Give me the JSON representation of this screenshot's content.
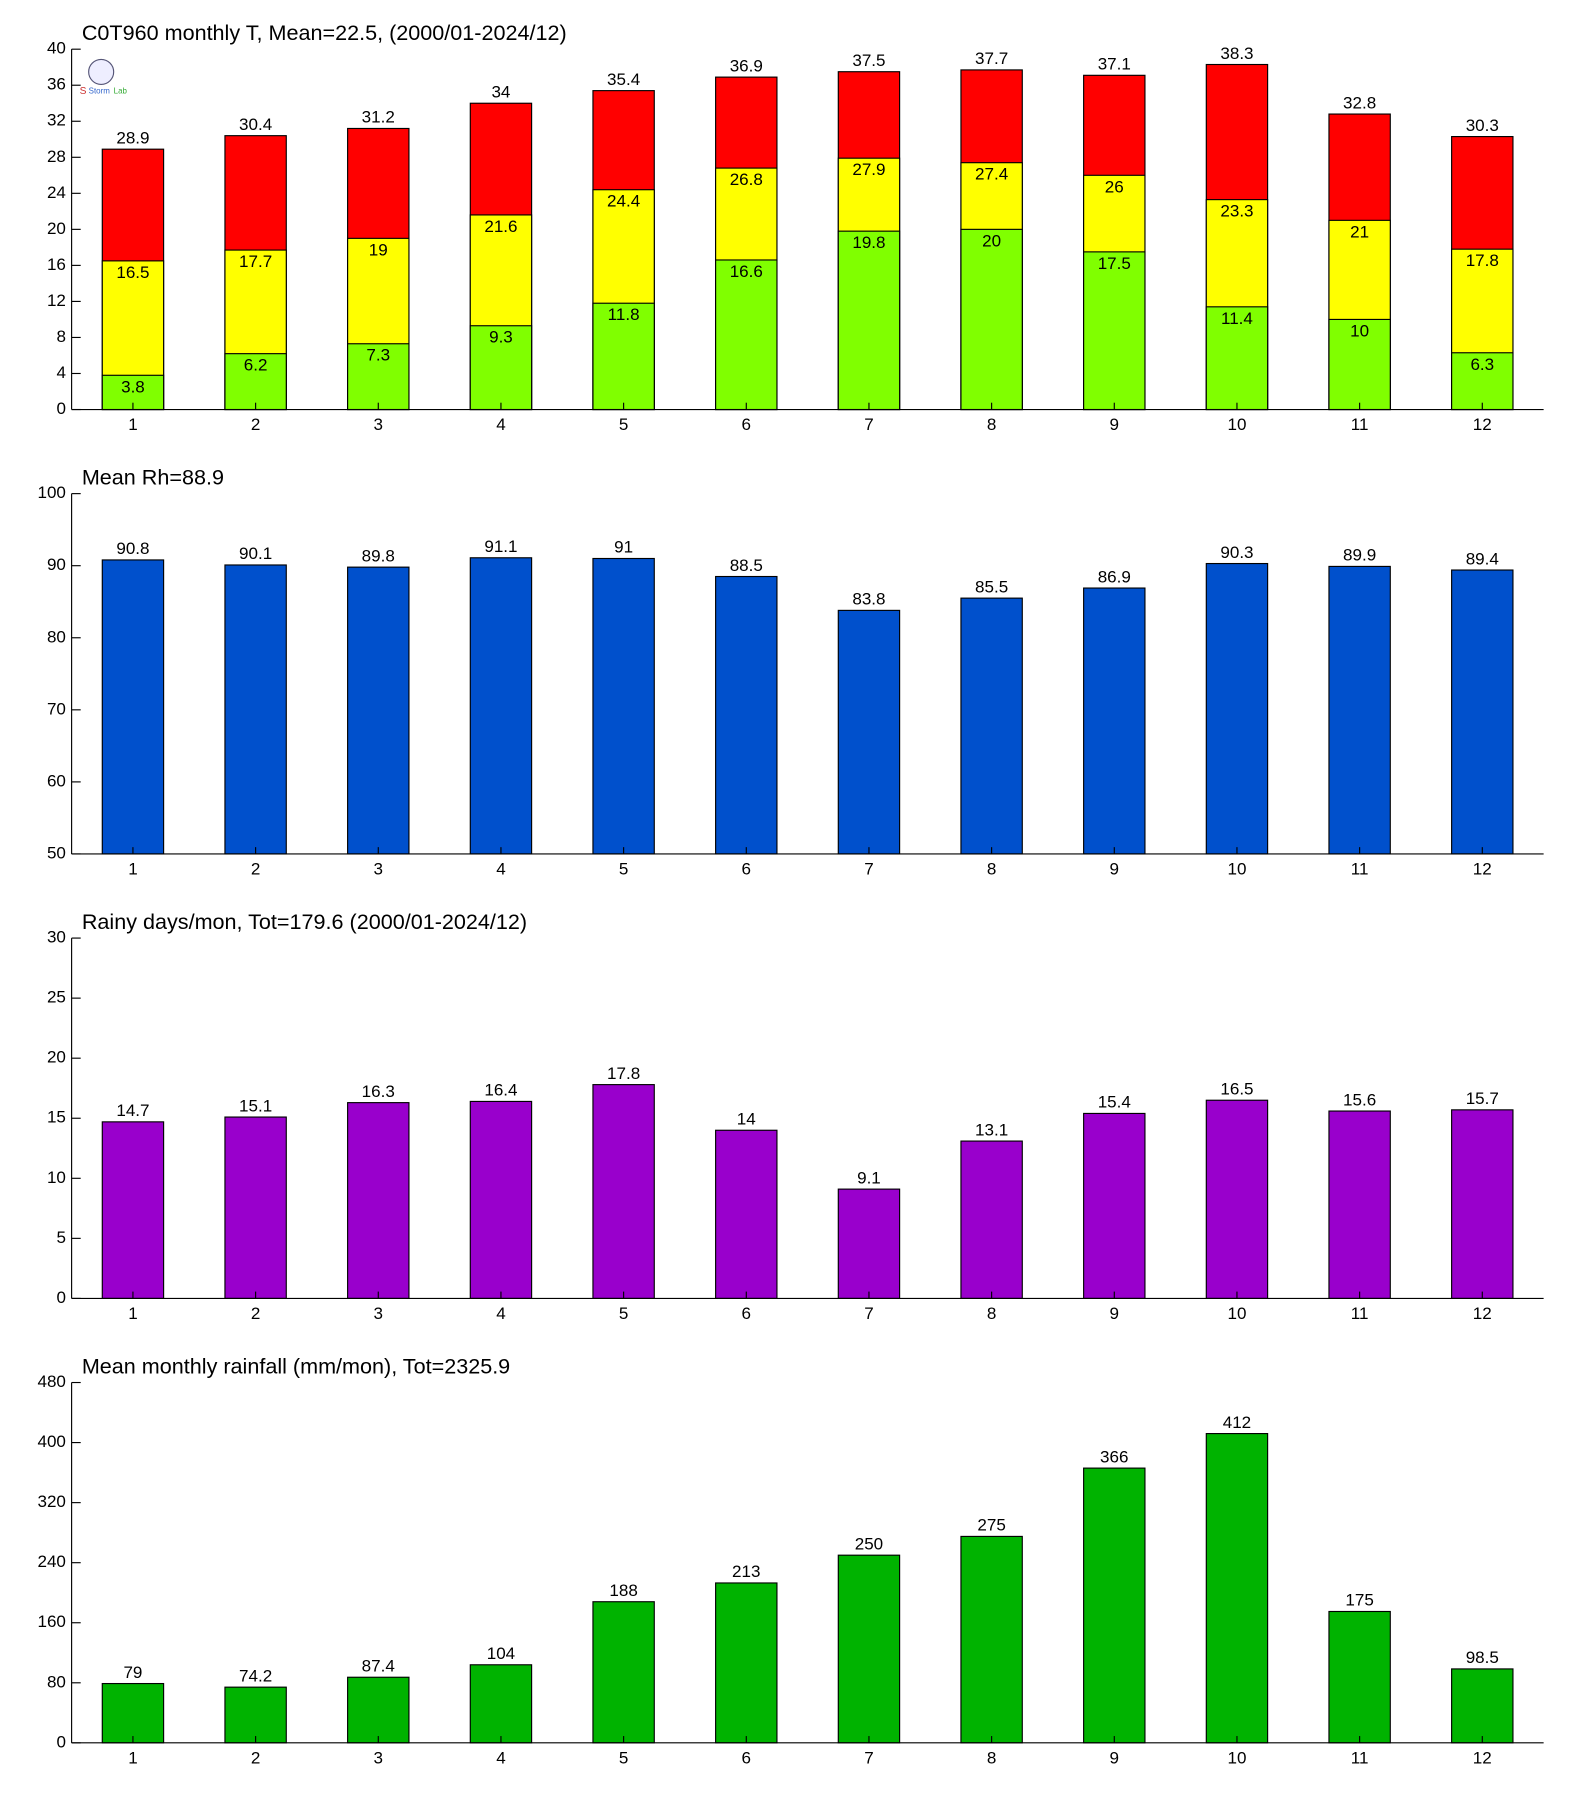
{
  "chart_data": [
    {
      "type": "bar",
      "title": "C0T960 monthly T, Mean=22.5, (2000/01-2024/12)",
      "categories": [
        "1",
        "2",
        "3",
        "4",
        "5",
        "6",
        "7",
        "8",
        "9",
        "10",
        "11",
        "12"
      ],
      "series": [
        {
          "color": "#ff0000",
          "values": [
            28.9,
            30.4,
            31.2,
            34,
            35.4,
            36.9,
            37.5,
            37.7,
            37.1,
            38.3,
            32.8,
            30.3
          ]
        },
        {
          "color": "#ffff00",
          "values": [
            16.5,
            17.7,
            19,
            21.6,
            24.4,
            26.8,
            27.9,
            27.4,
            26,
            23.3,
            21,
            17.8
          ]
        },
        {
          "color": "#80ff00",
          "values": [
            3.8,
            6.2,
            7.3,
            9.3,
            11.8,
            16.6,
            19.8,
            20,
            17.5,
            11.4,
            10,
            6.3
          ]
        }
      ],
      "ylim": [
        0,
        40
      ],
      "yticks": [
        0,
        4,
        8,
        12,
        16,
        20,
        24,
        28,
        32,
        36,
        40
      ]
    },
    {
      "type": "bar",
      "title": "Mean Rh=88.9",
      "categories": [
        "1",
        "2",
        "3",
        "4",
        "5",
        "6",
        "7",
        "8",
        "9",
        "10",
        "11",
        "12"
      ],
      "series": [
        {
          "color": "#0050cc",
          "values": [
            90.8,
            90.1,
            89.8,
            91.1,
            91,
            88.5,
            83.8,
            85.5,
            86.9,
            90.3,
            89.9,
            89.4
          ]
        }
      ],
      "ylim": [
        50,
        100
      ],
      "yticks": [
        50,
        60,
        70,
        80,
        90,
        100
      ]
    },
    {
      "type": "bar",
      "title": "Rainy days/mon, Tot=179.6 (2000/01-2024/12)",
      "categories": [
        "1",
        "2",
        "3",
        "4",
        "5",
        "6",
        "7",
        "8",
        "9",
        "10",
        "11",
        "12"
      ],
      "series": [
        {
          "color": "#9900cc",
          "values": [
            14.7,
            15.1,
            16.3,
            16.4,
            17.8,
            14,
            9.1,
            13.1,
            15.4,
            16.5,
            15.6,
            15.7
          ]
        }
      ],
      "ylim": [
        0,
        30
      ],
      "yticks": [
        0,
        5,
        10,
        15,
        20,
        25,
        30
      ]
    },
    {
      "type": "bar",
      "title": "Mean monthly rainfall (mm/mon), Tot=2325.9",
      "categories": [
        "1",
        "2",
        "3",
        "4",
        "5",
        "6",
        "7",
        "8",
        "9",
        "10",
        "11",
        "12"
      ],
      "series": [
        {
          "color": "#00b300",
          "values": [
            79,
            74.2,
            87.4,
            104,
            188,
            213,
            250,
            275,
            366,
            412,
            175,
            98.5
          ]
        }
      ],
      "ylim": [
        0,
        480
      ],
      "yticks": [
        0,
        80,
        160,
        240,
        320,
        400,
        480
      ]
    }
  ]
}
